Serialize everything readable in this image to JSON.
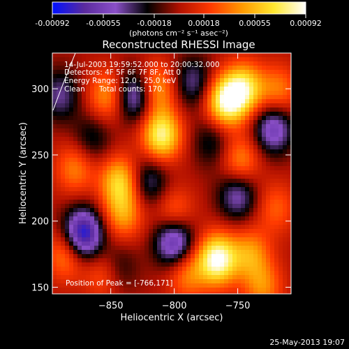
{
  "chart_data": {
    "type": "heatmap",
    "title": "Reconstructed RHESSI Image",
    "xlabel": "Heliocentric X (arcsec)",
    "ylabel": "Heliocentric Y (arcsec)",
    "xlim": [
      -896,
      -708
    ],
    "ylim": [
      145,
      327
    ],
    "x_ticks": [
      -850,
      -800,
      -750
    ],
    "y_ticks": [
      150,
      200,
      250,
      300
    ],
    "colorbar": {
      "ticks": [
        "-0.00092",
        "-0.00055",
        "-0.00018",
        "0.00018",
        "0.00055",
        "0.00092"
      ],
      "min": -0.00092,
      "max": 0.00092,
      "unit_label": "(photons cm⁻² s⁻¹ asec⁻²)",
      "colors": [
        "#0010ff",
        "#5a2a9e",
        "#8a4fc8",
        "#000000",
        "#b01000",
        "#ff3a00",
        "#ff9a00",
        "#ffe830",
        "#ffffff"
      ]
    },
    "annotations": [
      "14-Jul-2003 19:59:52.000 to 20:00:32.000",
      "Detectors: 4F 5F 6F 7F 8F, Att 0",
      "Energy Range: 12.0 - 25.0 keV",
      "Clean",
      "Total counts: 170."
    ],
    "peak_label": "Position of Peak = [-766,171]",
    "peak": [
      -766,
      171
    ],
    "sources": [
      {
        "x": -766,
        "y": 171,
        "v": 0.00092
      },
      {
        "x": -760,
        "y": 290,
        "v": 0.00082
      },
      {
        "x": -745,
        "y": 300,
        "v": 0.0007
      },
      {
        "x": -810,
        "y": 265,
        "v": 0.0008
      },
      {
        "x": -815,
        "y": 300,
        "v": 0.00055
      },
      {
        "x": -853,
        "y": 295,
        "v": 0.00045
      },
      {
        "x": -843,
        "y": 230,
        "v": 0.00062
      },
      {
        "x": -840,
        "y": 205,
        "v": 0.00045
      },
      {
        "x": -800,
        "y": 205,
        "v": 0.0004
      },
      {
        "x": -790,
        "y": 160,
        "v": 0.0004
      },
      {
        "x": -748,
        "y": 245,
        "v": 0.00045
      },
      {
        "x": -718,
        "y": 298,
        "v": 0.0004
      },
      {
        "x": -740,
        "y": 175,
        "v": 0.00045
      },
      {
        "x": -730,
        "y": 150,
        "v": 0.0004
      },
      {
        "x": -878,
        "y": 240,
        "v": 0.0004
      },
      {
        "x": -885,
        "y": 175,
        "v": 0.00045
      },
      {
        "x": -855,
        "y": 160,
        "v": 0.00035
      },
      {
        "x": -720,
        "y": 210,
        "v": 0.0003
      },
      {
        "x": -872,
        "y": 190,
        "v": -0.00092
      },
      {
        "x": -800,
        "y": 185,
        "v": -0.00075
      },
      {
        "x": -830,
        "y": 295,
        "v": -0.00065
      },
      {
        "x": -785,
        "y": 305,
        "v": -0.0004
      },
      {
        "x": -722,
        "y": 270,
        "v": -0.0006
      },
      {
        "x": -820,
        "y": 230,
        "v": -0.0004
      },
      {
        "x": -750,
        "y": 220,
        "v": -0.0005
      },
      {
        "x": -890,
        "y": 295,
        "v": -0.0004
      },
      {
        "x": -865,
        "y": 262,
        "v": -0.0003
      },
      {
        "x": -770,
        "y": 260,
        "v": -0.0003
      },
      {
        "x": -845,
        "y": 165,
        "v": -0.0003
      }
    ]
  },
  "footer": {
    "timestamp": "25-May-2013 19:07"
  }
}
